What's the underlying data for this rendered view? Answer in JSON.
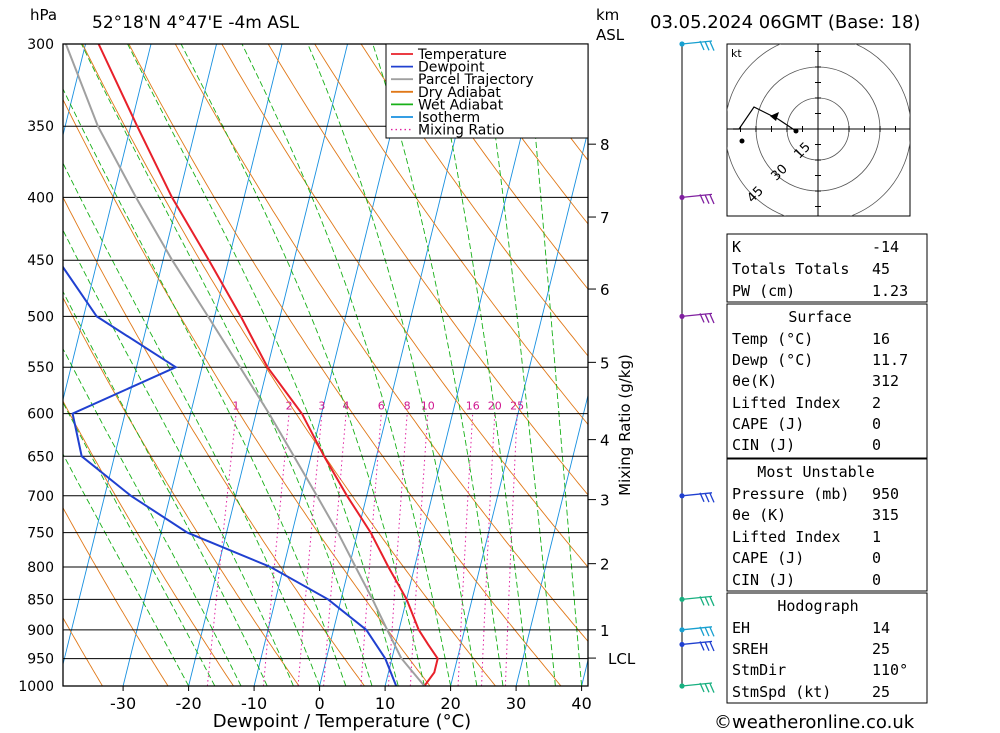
{
  "header": {
    "location": "52°18'N  4°47'E  -4m  ASL",
    "datetime": "03.05.2024  06GMT  (Base: 18)",
    "pressure_unit": "hPa",
    "height_unit_km": "km",
    "height_unit_asl": "ASL"
  },
  "footer": {
    "xlabel": "Dewpoint / Temperature (°C)",
    "credit": "©weatheronline.co.uk"
  },
  "mixing_ratio_label": "Mixing Ratio (g/kg)",
  "legend": {
    "items": [
      {
        "label": "Temperature",
        "color": "#e8202a",
        "style": "solid"
      },
      {
        "label": "Dewpoint",
        "color": "#2040d0",
        "style": "solid"
      },
      {
        "label": "Parcel Trajectory",
        "color": "#a0a0a0",
        "style": "solid"
      },
      {
        "label": "Dry Adiabat",
        "color": "#e07818",
        "style": "solid"
      },
      {
        "label": "Wet Adiabat",
        "color": "#18b018",
        "style": "solid"
      },
      {
        "label": "Isotherm",
        "color": "#1890e0",
        "style": "solid"
      },
      {
        "label": "Mixing Ratio",
        "color": "#e020a0",
        "style": "dotted"
      }
    ]
  },
  "chart_data": {
    "type": "line",
    "xlabel": "Dewpoint / Temperature (°C)",
    "ylabel": "hPa",
    "xlim": [
      -40,
      40
    ],
    "ylim": [
      1000,
      300
    ],
    "x_ticks": [
      -30,
      -20,
      -10,
      0,
      10,
      20,
      30,
      40
    ],
    "pressure_levels": [
      300,
      350,
      400,
      450,
      500,
      550,
      600,
      650,
      700,
      750,
      800,
      850,
      900,
      950,
      1000
    ],
    "height_km_ticks": [
      {
        "label": "8",
        "p": 362
      },
      {
        "label": "7",
        "p": 415
      },
      {
        "label": "6",
        "p": 475
      },
      {
        "label": "5",
        "p": 545
      },
      {
        "label": "4",
        "p": 630
      },
      {
        "label": "3",
        "p": 705
      },
      {
        "label": "2",
        "p": 795
      },
      {
        "label": "1",
        "p": 900
      },
      {
        "label": "LCL",
        "p": 949
      }
    ],
    "mixing_ratio_labels": [
      "1",
      "2",
      "3",
      "4",
      "6",
      "8",
      "10",
      "16",
      "20",
      "25"
    ],
    "mixing_ratio_values": [
      1,
      2,
      3,
      4,
      6,
      8,
      10,
      16,
      20,
      25
    ],
    "series": [
      {
        "name": "Temperature",
        "color": "#e8202a",
        "p": [
          1000,
          975,
          950,
          925,
          900,
          850,
          800,
          750,
          700,
          650,
          600,
          550,
          500,
          450,
          400,
          350,
          300
        ],
        "t": [
          16,
          17,
          17,
          15,
          13,
          10,
          6,
          2,
          -3,
          -8,
          -13,
          -20,
          -26,
          -33,
          -41,
          -49,
          -58
        ]
      },
      {
        "name": "Dewpoint",
        "color": "#2040d0",
        "p": [
          1000,
          950,
          900,
          850,
          800,
          750,
          700,
          650,
          600,
          550,
          500,
          450,
          400,
          350,
          300
        ],
        "t": [
          11.7,
          9,
          5,
          -2,
          -12,
          -26,
          -36,
          -45,
          -48,
          -34,
          -48,
          -56,
          -61,
          -64,
          -69
        ]
      },
      {
        "name": "Parcel Trajectory",
        "color": "#a0a0a0",
        "p": [
          1000,
          949,
          900,
          850,
          800,
          750,
          700,
          650,
          600,
          550,
          500,
          450,
          400,
          350,
          300
        ],
        "t": [
          16,
          11.4,
          8.2,
          4.8,
          1.0,
          -3.0,
          -7.6,
          -12.6,
          -18.0,
          -24.2,
          -31.0,
          -38.6,
          -46.5,
          -55.0,
          -63.0
        ]
      }
    ]
  },
  "wind_barbs": [
    {
      "p": 300,
      "color": "#18a0d0"
    },
    {
      "p": 400,
      "color": "#8020a0"
    },
    {
      "p": 500,
      "color": "#8020a0"
    },
    {
      "p": 700,
      "color": "#2040d0"
    },
    {
      "p": 850,
      "color": "#18b080"
    },
    {
      "p": 900,
      "color": "#18a0d0"
    },
    {
      "p": 925,
      "color": "#2040d0"
    },
    {
      "p": 1000,
      "color": "#18b080"
    }
  ],
  "hodograph": {
    "unit_label": "kt",
    "ring_labels": [
      "15",
      "30",
      "45"
    ]
  },
  "indices_table": [
    {
      "label": "K",
      "value": "-14"
    },
    {
      "label": "Totals Totals",
      "value": "45"
    },
    {
      "label": "PW (cm)",
      "value": "1.23"
    }
  ],
  "surface_table": {
    "title": "Surface",
    "rows": [
      {
        "label": "Temp (°C)",
        "value": "16"
      },
      {
        "label": "Dewp (°C)",
        "value": "11.7"
      },
      {
        "label": "θe(K)",
        "value": "312"
      },
      {
        "label": "Lifted Index",
        "value": "2"
      },
      {
        "label": "CAPE (J)",
        "value": "0"
      },
      {
        "label": "CIN (J)",
        "value": "0"
      }
    ]
  },
  "most_unstable_table": {
    "title": "Most Unstable",
    "rows": [
      {
        "label": "Pressure (mb)",
        "value": "950"
      },
      {
        "label": "θe (K)",
        "value": "315"
      },
      {
        "label": "Lifted Index",
        "value": "1"
      },
      {
        "label": "CAPE (J)",
        "value": "0"
      },
      {
        "label": "CIN (J)",
        "value": "0"
      }
    ]
  },
  "hodograph_table": {
    "title": "Hodograph",
    "rows": [
      {
        "label": "EH",
        "value": "14"
      },
      {
        "label": "SREH",
        "value": "25"
      },
      {
        "label": "StmDir",
        "value": "110°"
      },
      {
        "label": "StmSpd (kt)",
        "value": "25"
      }
    ]
  }
}
